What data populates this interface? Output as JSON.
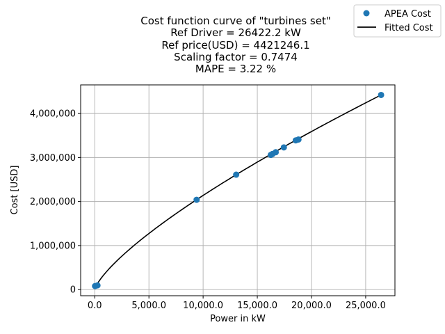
{
  "chart_data": {
    "type": "scatter",
    "title_lines": [
      "Cost function curve of \"turbines set\"",
      "Ref Driver = 26422.2 kW",
      "Ref price(USD) = 4421246.1",
      "Scaling factor = 0.7474",
      "MAPE = 3.22 %"
    ],
    "xlabel": "Power in kW",
    "ylabel": "Cost [USD]",
    "xlim": [
      -1300,
      27700
    ],
    "ylim": [
      -140000,
      4650000
    ],
    "x_ticks": [
      0,
      5000,
      10000,
      15000,
      20000,
      25000
    ],
    "x_tick_labels": [
      "0.0",
      "5,000.0",
      "10,000.0",
      "15,000.0",
      "20,000.0",
      "25,000.0"
    ],
    "y_ticks": [
      0,
      1000000,
      2000000,
      3000000,
      4000000
    ],
    "y_tick_labels": [
      "0",
      "1,000,000",
      "2,000,000",
      "3,000,000",
      "4,000,000"
    ],
    "grid": true,
    "legend_position": "top-right",
    "series": [
      {
        "name": "APEA Cost",
        "kind": "scatter",
        "color": "#1f77b4",
        "points": [
          [
            30,
            80000
          ],
          [
            250,
            95000
          ],
          [
            9400,
            2040000
          ],
          [
            13050,
            2610000
          ],
          [
            16250,
            3060000
          ],
          [
            16400,
            3080000
          ],
          [
            16700,
            3120000
          ],
          [
            17450,
            3230000
          ],
          [
            18550,
            3390000
          ],
          [
            18800,
            3410000
          ],
          [
            26422.2,
            4421246.1
          ]
        ]
      },
      {
        "name": "Fitted Cost",
        "kind": "line",
        "color": "#000000",
        "ref_x": 26422.2,
        "ref_y": 4421246.1,
        "exponent": 0.7474,
        "x_range": [
          150,
          26422.2
        ]
      }
    ]
  }
}
